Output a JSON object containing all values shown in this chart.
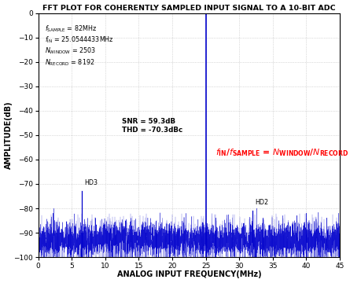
{
  "title": "FFT PLOT FOR COHERENTLY SAMPLED INPUT SIGNAL TO A 10-BIT ADC",
  "xlabel": "ANALOG INPUT FREQUENCY(MHz)",
  "ylabel": "AMPLITUDE(dB)",
  "xlim": [
    0,
    45
  ],
  "ylim": [
    -100,
    0
  ],
  "yticks": [
    0,
    -10,
    -20,
    -30,
    -40,
    -50,
    -60,
    -70,
    -80,
    -90,
    -100
  ],
  "xticks": [
    0,
    5,
    10,
    15,
    20,
    25,
    30,
    35,
    40,
    45
  ],
  "fSAMPLE": 82.0,
  "fIN": 25.0544433,
  "NWINDOW": 2503,
  "NRECORD": 8192,
  "SNR": "59.3dB",
  "THD": "-70.3dBc",
  "fundamental_freq": 25.0544433,
  "fundamental_amp": 0,
  "HD3_freq": 6.5,
  "HD3_amp": -73,
  "HD2_freq": 32.0,
  "HD2_amp": -81,
  "noise_floor": -93,
  "noise_std": 3.5,
  "background_color": "#ffffff",
  "plot_bg_color": "#ffffff",
  "line_color": "#0000cc",
  "grid_color": "#bbbbbb",
  "title_fontsize": 6.8,
  "label_fontsize": 7.0,
  "tick_fontsize": 6.5,
  "annotation_fontsize": 5.8
}
